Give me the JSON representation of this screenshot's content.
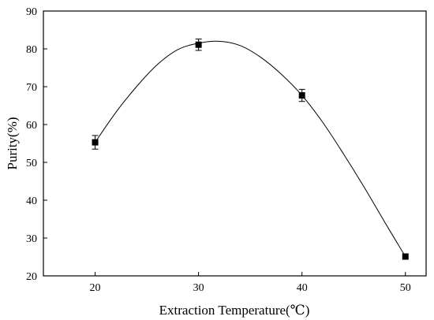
{
  "chart_data": {
    "type": "scatter",
    "xlabel": "Extraction Temperature(℃)",
    "ylabel": "Purity(%)",
    "xlim": [
      15,
      52
    ],
    "ylim": [
      20,
      90
    ],
    "xticks": [
      20,
      30,
      40,
      50
    ],
    "yticks": [
      20,
      30,
      40,
      50,
      60,
      70,
      80,
      90
    ],
    "xtick_labels": [
      "20",
      "30",
      "40",
      "50"
    ],
    "ytick_labels": [
      "20",
      "30",
      "40",
      "50",
      "60",
      "70",
      "80",
      "90"
    ],
    "grid": false,
    "series": [
      {
        "marker": "square",
        "color": "#000000",
        "x": [
          20,
          30,
          40,
          50
        ],
        "y": [
          55.3,
          81.1,
          67.7,
          25.1
        ],
        "error": [
          1.8,
          1.5,
          1.6,
          0
        ]
      }
    ],
    "fit_curve": {
      "type": "smooth-fit",
      "color": "#000000",
      "x": [
        20,
        22,
        24,
        26,
        28,
        30,
        32,
        34,
        36,
        38,
        40,
        42,
        44,
        46,
        48,
        50
      ],
      "y": [
        55.3,
        63.2,
        70.0,
        75.8,
        79.8,
        81.5,
        82.0,
        80.9,
        77.8,
        73.3,
        67.7,
        60.6,
        52.3,
        43.5,
        34.2,
        25.1
      ]
    }
  }
}
